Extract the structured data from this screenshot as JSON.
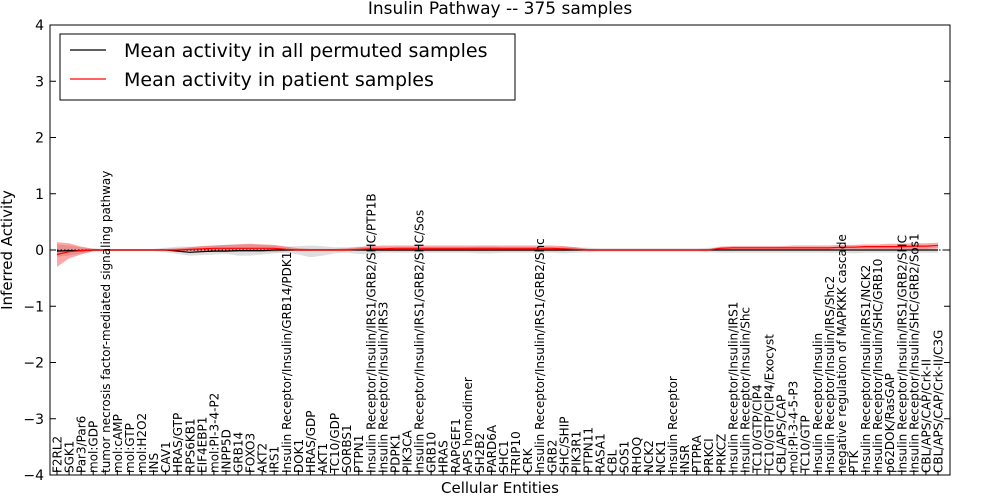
{
  "chart_data": {
    "type": "line",
    "title": "Insulin Pathway -- 375 samples",
    "xlabel": "Cellular Entities",
    "ylabel": "Inferred Activity",
    "ylim": [
      -4,
      4
    ],
    "yticks": [
      -4,
      -3,
      -2,
      -1,
      0,
      1,
      2,
      3,
      4
    ],
    "ytick_labels": [
      "−4",
      "−3",
      "−2",
      "−1",
      "0",
      "1",
      "2",
      "3",
      "4"
    ],
    "legend_position": "top-left",
    "categories": [
      "F2RL2",
      "SGK1",
      "Par3/Par6",
      "mol:GDP",
      "tumor necrosis factor-mediated signaling pathway",
      "mol:cAMP",
      "mol:GTP",
      "mol:H2O2",
      "INS",
      "CAV1",
      "HRAS/GTP",
      "RPS6KB1",
      "EIF4EBP1",
      "mol:PI-3-4-P2",
      "INPP5D",
      "GRB14",
      "FOXO3",
      "AKT2",
      "IRS1",
      "Insulin Receptor/Insulin/GRB14/PDK1",
      "DOK1",
      "HRAS/GDP",
      "AKT1",
      "TC10/GDP",
      "SORBS1",
      "PTPN1",
      "Insulin Receptor/Insulin/IRS1/GRB2/SHC/PTP1B",
      "Insulin Receptor/Insulin/IRS3",
      "PDPK1",
      "PIK3CA",
      "Insulin Receptor/Insulin/IRS1/GRB2/SHC/Sos",
      "GRB10",
      "HRAS",
      "RAPGEF1",
      "APS homodimer",
      "SH2B2",
      "PARD6A",
      "SHC1",
      "TRIP10",
      "CRK",
      "Insulin Receptor/Insulin/IRS1/GRB2/Shc",
      "GRB2",
      "SHC/SHIP",
      "PIK3R1",
      "PTPN11",
      "RASA1",
      "CBL",
      "SOS1",
      "RHOQ",
      "NCK2",
      "NCK1",
      "Insulin Receptor",
      "INSR",
      "PTPRA",
      "PRKCI",
      "PRKCZ",
      "Insulin Receptor/Insulin/IRS1",
      "Insulin Receptor/Insulin/Shc",
      "TC10/GTP/CIP4",
      "TC10/GTP/CIP4/Exocyst",
      "CBL/APS/CAP",
      "mol:PI-3-4-5-P3",
      "TC10/GTP",
      "Insulin Receptor/Insulin",
      "Insulin Receptor/Insulin/IRS/Shc2",
      "negative regulation of MAPKKK cascade",
      "PTK",
      "Insulin Receptor/Insulin/IRS1/NCK2",
      "Insulin Receptor/Insulin/SHC/GRB10",
      "p62DOK/RasGAP",
      "Insulin Receptor/Insulin/IRS1/GRB2/SHC",
      "Insulin Receptor/Insulin/SHC/GRB2/Sos1",
      "CBL/APS/CAP/Crk-II",
      "CBL/APS/CAP/Crk-II/C3G"
    ],
    "series": [
      {
        "name": "Mean activity in all permuted samples",
        "color": "#000000",
        "values": [
          -0.02,
          -0.01,
          -0.01,
          0.0,
          0.0,
          0.0,
          0.0,
          0.0,
          0.0,
          0.0,
          -0.02,
          -0.04,
          -0.03,
          -0.02,
          -0.02,
          -0.01,
          -0.01,
          -0.01,
          0.0,
          0.0,
          0.0,
          0.0,
          0.0,
          0.0,
          0.0,
          0.0,
          0.0,
          0.0,
          0.0,
          0.0,
          0.0,
          0.0,
          0.0,
          0.0,
          0.0,
          0.0,
          0.0,
          0.0,
          0.0,
          0.0,
          0.0,
          0.0,
          0.0,
          0.0,
          0.0,
          0.0,
          0.0,
          0.0,
          0.0,
          0.0,
          0.0,
          0.0,
          0.0,
          0.0,
          0.0,
          0.0,
          0.0,
          0.0,
          0.0,
          0.0,
          0.0,
          0.0,
          0.0,
          0.0,
          0.0,
          0.0,
          0.0,
          0.0,
          0.0,
          0.0,
          0.0,
          0.0,
          0.0,
          0.0
        ]
      },
      {
        "name": "Mean activity in patient samples",
        "color": "#ff0000",
        "values": [
          -0.08,
          -0.03,
          -0.01,
          0.0,
          0.0,
          0.0,
          0.0,
          0.0,
          0.0,
          0.0,
          0.0,
          0.01,
          0.02,
          0.03,
          0.03,
          0.03,
          0.03,
          0.03,
          0.03,
          0.01,
          0.0,
          0.0,
          0.0,
          0.0,
          0.0,
          0.01,
          0.02,
          0.02,
          0.03,
          0.03,
          0.03,
          0.03,
          0.03,
          0.03,
          0.03,
          0.03,
          0.03,
          0.03,
          0.03,
          0.03,
          0.03,
          0.03,
          0.02,
          0.01,
          0.0,
          0.0,
          0.0,
          0.0,
          0.0,
          0.0,
          0.0,
          0.0,
          0.0,
          0.0,
          0.0,
          0.03,
          0.04,
          0.04,
          0.04,
          0.04,
          0.04,
          0.04,
          0.04,
          0.04,
          0.04,
          0.05,
          0.05,
          0.06,
          0.06,
          0.06,
          0.06,
          0.07,
          0.07,
          0.08
        ]
      }
    ],
    "band_permuted": {
      "lower": [
        -0.12,
        -0.1,
        -0.06,
        -0.03,
        -0.02,
        -0.02,
        -0.02,
        -0.02,
        -0.02,
        -0.04,
        -0.07,
        -0.1,
        -0.09,
        -0.08,
        -0.07,
        -0.1,
        -0.1,
        -0.08,
        -0.06,
        -0.05,
        -0.08,
        -0.13,
        -0.1,
        -0.06,
        -0.05,
        -0.07,
        -0.08,
        -0.05,
        -0.05,
        -0.05,
        -0.05,
        -0.05,
        -0.05,
        -0.05,
        -0.05,
        -0.06,
        -0.06,
        -0.05,
        -0.05,
        -0.05,
        -0.05,
        -0.05,
        -0.06,
        -0.05,
        -0.04,
        -0.03,
        -0.03,
        -0.03,
        -0.03,
        -0.03,
        -0.03,
        -0.03,
        -0.03,
        -0.03,
        -0.04,
        -0.05,
        -0.05,
        -0.05,
        -0.05,
        -0.05,
        -0.05,
        -0.05,
        -0.05,
        -0.05,
        -0.05,
        -0.05,
        -0.06,
        -0.05,
        -0.05,
        -0.05,
        -0.05,
        -0.05,
        -0.05,
        -0.05
      ],
      "upper": [
        0.1,
        0.08,
        0.05,
        0.03,
        0.02,
        0.02,
        0.02,
        0.02,
        0.02,
        0.04,
        0.06,
        0.06,
        0.07,
        0.08,
        0.09,
        0.1,
        0.1,
        0.09,
        0.08,
        0.06,
        0.07,
        0.08,
        0.07,
        0.05,
        0.05,
        0.06,
        0.07,
        0.05,
        0.05,
        0.05,
        0.05,
        0.05,
        0.05,
        0.05,
        0.05,
        0.06,
        0.06,
        0.05,
        0.05,
        0.05,
        0.05,
        0.05,
        0.06,
        0.05,
        0.04,
        0.03,
        0.03,
        0.03,
        0.03,
        0.03,
        0.03,
        0.03,
        0.03,
        0.03,
        0.04,
        0.05,
        0.05,
        0.05,
        0.05,
        0.05,
        0.05,
        0.05,
        0.05,
        0.05,
        0.05,
        0.05,
        0.06,
        0.05,
        0.05,
        0.05,
        0.05,
        0.05,
        0.05,
        0.05
      ]
    },
    "band_patient": {
      "lower": [
        -0.3,
        -0.15,
        -0.08,
        -0.02,
        -0.01,
        -0.01,
        -0.01,
        -0.01,
        -0.01,
        -0.01,
        -0.02,
        -0.02,
        -0.03,
        -0.03,
        -0.03,
        -0.03,
        -0.03,
        -0.03,
        -0.03,
        -0.02,
        -0.01,
        -0.01,
        -0.01,
        -0.01,
        -0.01,
        -0.01,
        -0.02,
        -0.02,
        -0.02,
        -0.02,
        -0.02,
        -0.02,
        -0.02,
        -0.02,
        -0.02,
        -0.02,
        -0.02,
        -0.02,
        -0.02,
        -0.02,
        -0.02,
        -0.02,
        -0.02,
        -0.01,
        -0.01,
        -0.01,
        -0.01,
        -0.01,
        -0.01,
        -0.01,
        -0.01,
        -0.01,
        -0.01,
        -0.01,
        -0.01,
        0.0,
        0.01,
        0.01,
        0.01,
        0.01,
        0.01,
        0.01,
        0.01,
        0.01,
        0.01,
        0.02,
        0.02,
        0.02,
        0.02,
        0.02,
        0.02,
        0.02,
        0.02,
        0.03
      ],
      "upper": [
        0.14,
        0.12,
        0.06,
        0.02,
        0.01,
        0.01,
        0.01,
        0.01,
        0.01,
        0.02,
        0.03,
        0.05,
        0.07,
        0.08,
        0.09,
        0.1,
        0.11,
        0.1,
        0.09,
        0.06,
        0.03,
        0.02,
        0.02,
        0.02,
        0.03,
        0.05,
        0.07,
        0.08,
        0.08,
        0.08,
        0.08,
        0.08,
        0.08,
        0.08,
        0.08,
        0.08,
        0.08,
        0.08,
        0.08,
        0.08,
        0.08,
        0.08,
        0.07,
        0.05,
        0.02,
        0.01,
        0.01,
        0.01,
        0.01,
        0.01,
        0.01,
        0.01,
        0.01,
        0.01,
        0.02,
        0.06,
        0.07,
        0.07,
        0.07,
        0.07,
        0.07,
        0.08,
        0.08,
        0.08,
        0.08,
        0.09,
        0.09,
        0.1,
        0.1,
        0.11,
        0.11,
        0.12,
        0.12,
        0.13
      ]
    },
    "band_colors": {
      "permuted": "#c8c8c8",
      "patient": "#ff0000"
    },
    "reference_line": 0
  }
}
